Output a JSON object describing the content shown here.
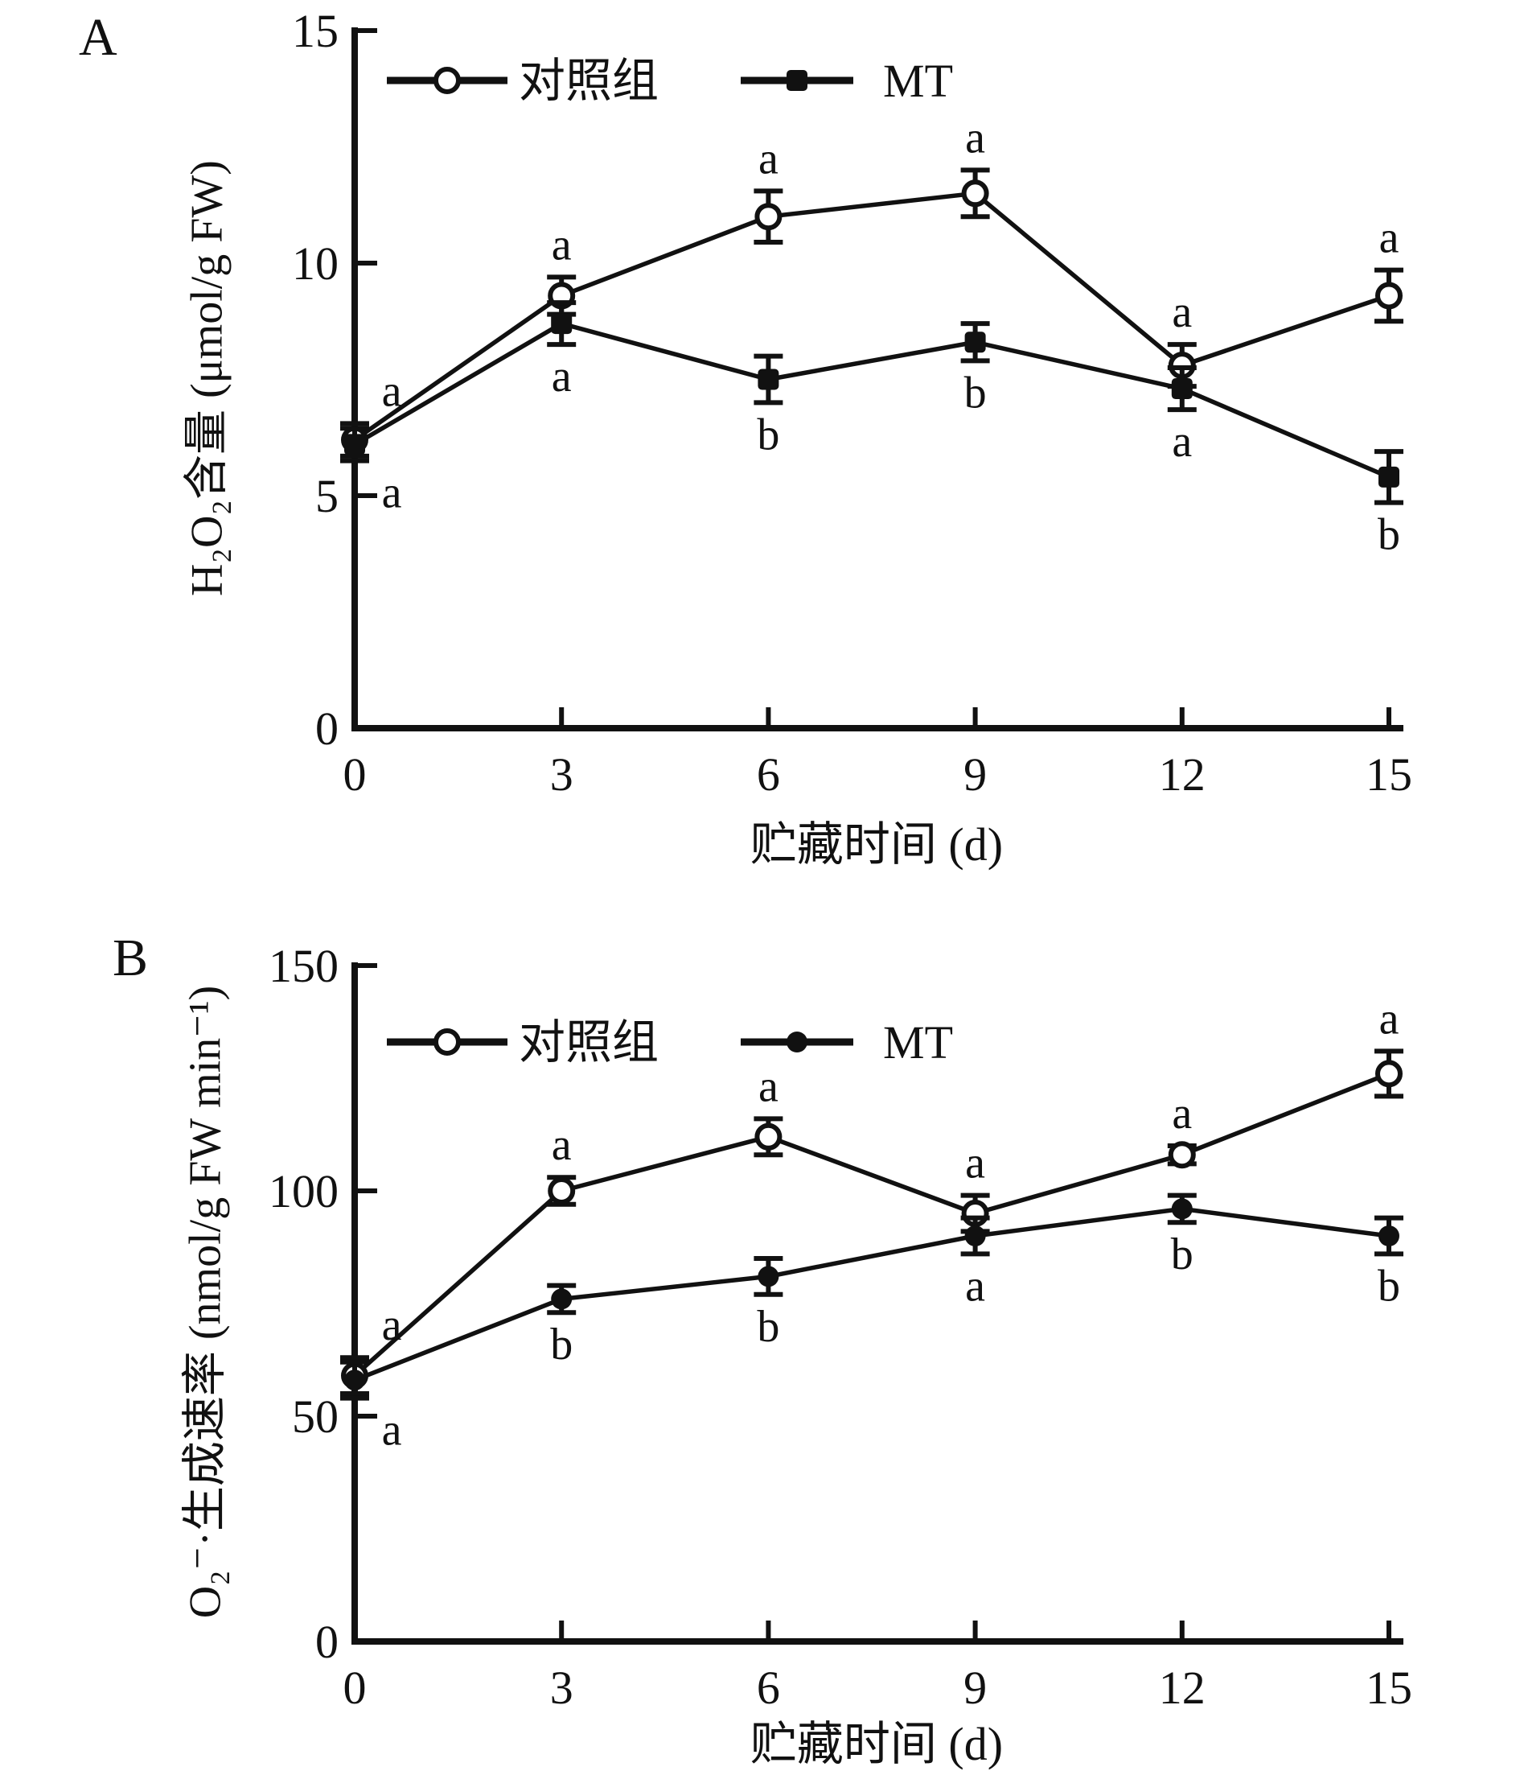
{
  "figure": {
    "background": "#ffffff",
    "ink_color": "#111111",
    "marker_fill_open": "#ffffff"
  },
  "chart_data": [
    {
      "type": "line",
      "panel": "A",
      "title": "",
      "xlabel": "贮藏时间 (d)",
      "ylabel": "H₂O₂含量 (μmol/g FW)",
      "x": [
        0,
        3,
        6,
        9,
        12,
        15
      ],
      "xticks": [
        0,
        3,
        6,
        9,
        12,
        15
      ],
      "xlim": [
        0,
        15
      ],
      "yticks": [
        0,
        5,
        10,
        15
      ],
      "ylim": [
        0,
        15
      ],
      "grid": false,
      "legend_position": "top-inside",
      "series": [
        {
          "name": "对照组",
          "marker": "open-circle",
          "values": [
            6.2,
            9.3,
            11.0,
            11.5,
            7.8,
            9.3
          ],
          "errors": [
            0.35,
            0.4,
            0.55,
            0.5,
            0.45,
            0.55
          ],
          "sig_letters": [
            "a",
            "a",
            "a",
            "a",
            "a",
            "a"
          ],
          "letters_side": "above"
        },
        {
          "name": "MT",
          "marker": "filled-square",
          "values": [
            6.1,
            8.7,
            7.5,
            8.3,
            7.3,
            5.4
          ],
          "errors": [
            0.35,
            0.45,
            0.5,
            0.4,
            0.45,
            0.55
          ],
          "sig_letters": [
            "a",
            "a",
            "b",
            "b",
            "a",
            "b"
          ],
          "letters_side": "below"
        }
      ]
    },
    {
      "type": "line",
      "panel": "B",
      "title": "",
      "xlabel": "贮藏时间 (d)",
      "ylabel": "O₂⁻·生成速率 (nmol/g FW min⁻¹)",
      "x": [
        0,
        3,
        6,
        9,
        12,
        15
      ],
      "xticks": [
        0,
        3,
        6,
        9,
        12,
        15
      ],
      "xlim": [
        0,
        15
      ],
      "yticks": [
        0,
        50,
        100,
        150
      ],
      "ylim": [
        0,
        150
      ],
      "grid": false,
      "legend_position": "top-inside",
      "series": [
        {
          "name": "对照组",
          "marker": "open-circle",
          "values": [
            59,
            100,
            112,
            95,
            108,
            126
          ],
          "errors": [
            4,
            3,
            4,
            4,
            2,
            5
          ],
          "sig_letters": [
            "a",
            "a",
            "a",
            "a",
            "a",
            "a"
          ],
          "letters_side": "above"
        },
        {
          "name": "MT",
          "marker": "filled-circle",
          "values": [
            58,
            76,
            81,
            90,
            96,
            90
          ],
          "errors": [
            4,
            3,
            4,
            4,
            3,
            4
          ],
          "sig_letters": [
            "a",
            "b",
            "b",
            "a",
            "b",
            "b"
          ],
          "letters_side": "below"
        }
      ]
    }
  ]
}
